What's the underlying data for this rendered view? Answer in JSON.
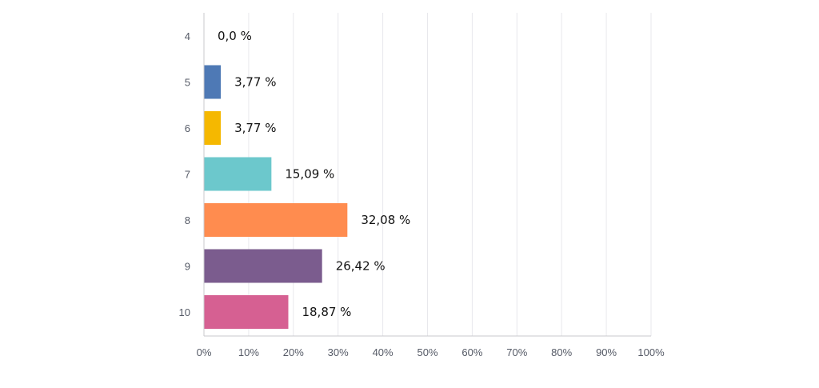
{
  "chart_data": {
    "type": "bar",
    "orientation": "horizontal",
    "categories": [
      "4",
      "5",
      "6",
      "7",
      "8",
      "9",
      "10"
    ],
    "values": [
      0.0,
      3.77,
      3.77,
      15.09,
      32.08,
      26.42,
      18.87
    ],
    "value_labels": [
      "0,0 %",
      "3,77 %",
      "3,77 %",
      "15,09 %",
      "32,08 %",
      "26,42 %",
      "18,87 %"
    ],
    "colors": [
      "#4e79b5",
      "#4e79b5",
      "#f5b800",
      "#6cc8cc",
      "#ff8c4f",
      "#7b5c8e",
      "#d66092"
    ],
    "xlim": [
      0,
      100
    ],
    "x_ticks": [
      "0%",
      "10%",
      "20%",
      "30%",
      "40%",
      "50%",
      "60%",
      "70%",
      "80%",
      "90%",
      "100%"
    ],
    "grid": true,
    "title": "",
    "xlabel": "",
    "ylabel": ""
  }
}
